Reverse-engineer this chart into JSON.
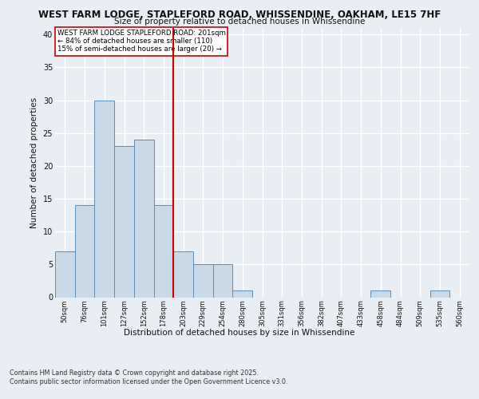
{
  "title_line1": "WEST FARM LODGE, STAPLEFORD ROAD, WHISSENDINE, OAKHAM, LE15 7HF",
  "title_line2": "Size of property relative to detached houses in Whissendine",
  "xlabel": "Distribution of detached houses by size in Whissendine",
  "ylabel": "Number of detached properties",
  "categories": [
    "50sqm",
    "76sqm",
    "101sqm",
    "127sqm",
    "152sqm",
    "178sqm",
    "203sqm",
    "229sqm",
    "254sqm",
    "280sqm",
    "305sqm",
    "331sqm",
    "356sqm",
    "382sqm",
    "407sqm",
    "433sqm",
    "458sqm",
    "484sqm",
    "509sqm",
    "535sqm",
    "560sqm"
  ],
  "values": [
    7,
    14,
    30,
    23,
    24,
    14,
    7,
    5,
    5,
    1,
    0,
    0,
    0,
    0,
    0,
    0,
    1,
    0,
    0,
    1,
    0
  ],
  "bar_color": "#c9d9e8",
  "bar_edge_color": "#5b8db8",
  "vline_color": "#cc0000",
  "ylim": [
    0,
    41
  ],
  "yticks": [
    0,
    5,
    10,
    15,
    20,
    25,
    30,
    35,
    40
  ],
  "annotation_line1": "WEST FARM LODGE STAPLEFORD ROAD: 201sqm",
  "annotation_line2": "← 84% of detached houses are smaller (110)",
  "annotation_line3": "15% of semi-detached houses are larger (20) →",
  "footnote_line1": "Contains HM Land Registry data © Crown copyright and database right 2025.",
  "footnote_line2": "Contains public sector information licensed under the Open Government Licence v3.0.",
  "background_color": "#e8eef4",
  "grid_color": "#ffffff"
}
